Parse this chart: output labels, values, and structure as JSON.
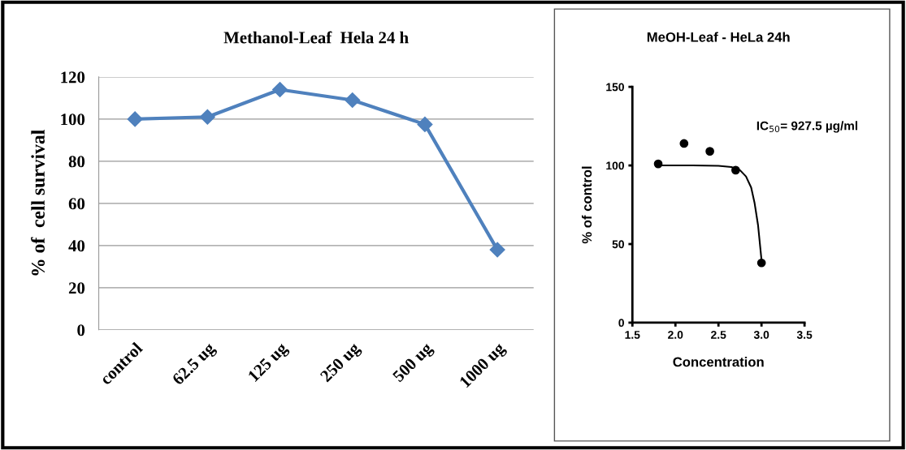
{
  "chart_data": [
    {
      "type": "line",
      "title": "Methanol-Leaf  Hela 24 h",
      "ylabel": "% of  cell survival",
      "categories": [
        "control",
        "62.5 ug",
        "125 ug",
        "250 ug",
        "500 ug",
        "1000 ug"
      ],
      "series": [
        {
          "color": "#4f81bd",
          "values": [
            100,
            101,
            114,
            109,
            97.5,
            38
          ]
        }
      ],
      "marker": "diamond",
      "line_style": "solid",
      "ylim": [
        0,
        120
      ],
      "yticks": [
        0,
        20,
        40,
        60,
        80,
        100,
        120
      ],
      "grid": "y",
      "legend": false
    },
    {
      "type": "scatter",
      "title": "MeOH-Leaf - HeLa 24h",
      "xlabel": "Concentration",
      "ylabel": "% of control",
      "series": [
        {
          "type": "scatter",
          "color": "#000000",
          "x": [
            1.8,
            2.1,
            2.4,
            2.7,
            3.0
          ],
          "values": [
            101,
            114,
            109,
            97,
            38
          ],
          "marker": "circle"
        },
        {
          "type": "line",
          "color": "#000000",
          "x": [
            1.8,
            2.2,
            2.5,
            2.65,
            2.75,
            2.82,
            2.88,
            2.92,
            2.96,
            3.0
          ],
          "values": [
            100,
            100,
            99.8,
            99,
            97,
            93,
            86,
            76,
            62,
            40
          ],
          "marker": "none"
        }
      ],
      "annotations": [
        "IC$_{50}$= 927.5 µg/ml"
      ],
      "xlim": [
        1.5,
        3.5
      ],
      "xticks": [
        {
          "value": 1.5,
          "label": "1.5"
        },
        {
          "value": 2.0,
          "label": "2.0"
        },
        {
          "value": 2.5,
          "label": "2.5"
        },
        {
          "value": 3.0,
          "label": "3.0"
        },
        {
          "value": 3.5,
          "label": "3.5"
        }
      ],
      "ylim": [
        0,
        150
      ],
      "yticks": [
        0,
        50,
        100,
        150
      ],
      "grid": false,
      "legend": false
    }
  ]
}
